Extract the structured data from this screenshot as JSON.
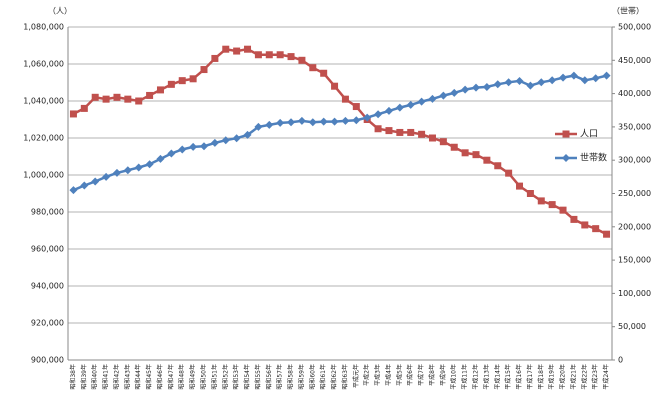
{
  "chart_data": {
    "type": "line",
    "y_label": "（人）",
    "y2_label": "（世帯）",
    "categories": [
      "昭和38年",
      "昭和39年",
      "昭和40年",
      "昭和41年",
      "昭和42年",
      "昭和43年",
      "昭和44年",
      "昭和45年",
      "昭和46年",
      "昭和47年",
      "昭和48年",
      "昭和49年",
      "昭和50年",
      "昭和51年",
      "昭和52年",
      "昭和53年",
      "昭和54年",
      "昭和55年",
      "昭和56年",
      "昭和57年",
      "昭和58年",
      "昭和59年",
      "昭和60年",
      "昭和61年",
      "昭和62年",
      "昭和63年",
      "平成元年",
      "平成2年",
      "平成3年",
      "平成4年",
      "平成5年",
      "平成6年",
      "平成7年",
      "平成8年",
      "平成9年",
      "平成10年",
      "平成11年",
      "平成12年",
      "平成13年",
      "平成14年",
      "平成15年",
      "平成16年",
      "平成17年",
      "平成18年",
      "平成19年",
      "平成20年",
      "平成21年",
      "平成22年",
      "平成23年",
      "平成24年"
    ],
    "series": [
      {
        "name": "人口",
        "color": "#c0504d",
        "marker": "square",
        "values": [
          1033000,
          1036000,
          1042000,
          1041000,
          1042000,
          1041000,
          1040000,
          1043000,
          1046000,
          1049000,
          1051000,
          1052000,
          1057000,
          1063000,
          1068000,
          1067000,
          1068000,
          1065000,
          1065000,
          1065000,
          1064000,
          1062000,
          1058000,
          1055000,
          1048000,
          1041000,
          1037000,
          1030000,
          1025000,
          1024000,
          1023000,
          1023000,
          1022000,
          1020000,
          1018000,
          1015000,
          1012000,
          1011000,
          1008000,
          1005000,
          1001000,
          994000,
          990000,
          986000,
          984000,
          981000,
          976000,
          973000,
          971000,
          968000
        ]
      },
      {
        "name": "世帯数",
        "color": "#4f81bd",
        "marker": "diamond",
        "axis": "y2",
        "values": [
          255000,
          262000,
          268000,
          275000,
          281000,
          285000,
          289000,
          294000,
          302000,
          310000,
          316000,
          320000,
          321000,
          326000,
          330000,
          333000,
          338000,
          350000,
          353000,
          356000,
          357000,
          359000,
          357000,
          358000,
          358000,
          359000,
          360000,
          364000,
          369000,
          374000,
          379000,
          383000,
          388000,
          392000,
          397000,
          401000,
          406000,
          409000,
          410000,
          414000,
          417000,
          419000,
          412000,
          417000,
          420000,
          424000,
          427000,
          420000,
          423000,
          427000
        ]
      }
    ],
    "ylim": [
      900000,
      1080000
    ],
    "yticks": [
      {
        "value": 900000,
        "label": "900,000"
      },
      {
        "value": 920000,
        "label": "920,000"
      },
      {
        "value": 940000,
        "label": "940,000"
      },
      {
        "value": 960000,
        "label": "960,000"
      },
      {
        "value": 980000,
        "label": "980,000"
      },
      {
        "value": 1000000,
        "label": "1,000,000"
      },
      {
        "value": 1020000,
        "label": "1,020,000"
      },
      {
        "value": 1040000,
        "label": "1,040,000"
      },
      {
        "value": 1060000,
        "label": "1,060,000"
      },
      {
        "value": 1080000,
        "label": "1,080,000"
      }
    ],
    "y2lim": [
      0,
      500000
    ],
    "y2ticks": [
      0,
      {
        "value": 50000,
        "label": "50,000"
      },
      {
        "value": 100000,
        "label": "100,000"
      },
      {
        "value": 150000,
        "label": "150,000"
      },
      {
        "value": 200000,
        "label": "200,000"
      },
      {
        "value": 250000,
        "label": "250,000"
      },
      {
        "value": 300000,
        "label": "300,000"
      },
      {
        "value": 350000,
        "label": "350,000"
      },
      {
        "value": 400000,
        "label": "400,000"
      },
      {
        "value": 450000,
        "label": "450,000"
      },
      {
        "value": 500000,
        "label": "500,000"
      }
    ],
    "grid": true,
    "legend": "right"
  }
}
